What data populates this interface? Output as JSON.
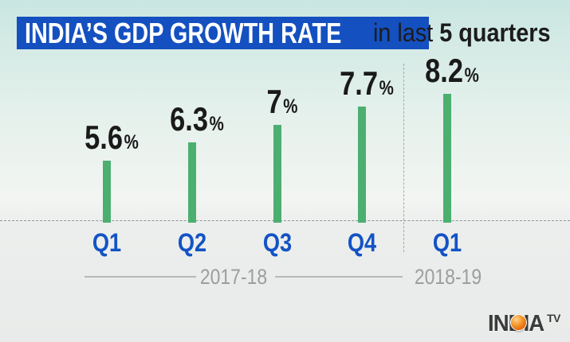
{
  "header": {
    "title": "INDIA’S GDP GROWTH RATE",
    "subtitle_prefix": "in last ",
    "subtitle_bold": "5 quarters",
    "title_bg": "#1450c0",
    "title_color": "#ffffff"
  },
  "chart_data": {
    "type": "bar",
    "title": "INDIA’S GDP GROWTH RATE in last 5 quarters",
    "categories": [
      "Q1",
      "Q2",
      "Q3",
      "Q4",
      "Q1"
    ],
    "values": [
      5.6,
      6.3,
      7,
      7.7,
      8.2
    ],
    "value_labels": [
      "5.6",
      "6.3",
      "7",
      "7.7",
      "8.2"
    ],
    "unit": "%",
    "groups": [
      {
        "label": "2017-18",
        "categories": [
          "Q1",
          "Q2",
          "Q3",
          "Q4"
        ]
      },
      {
        "label": "2018-19",
        "categories": [
          "Q1"
        ]
      }
    ],
    "ylim": [
      0,
      9
    ],
    "grid": "off",
    "legend": "none",
    "bar_color": "#4caf70",
    "value_label_color": "#1a1a1a",
    "category_color": "#1353c5",
    "group_label_color": "#9a9e9d"
  },
  "footer": {
    "brand": "INDIA",
    "brand_sup": "TV"
  }
}
